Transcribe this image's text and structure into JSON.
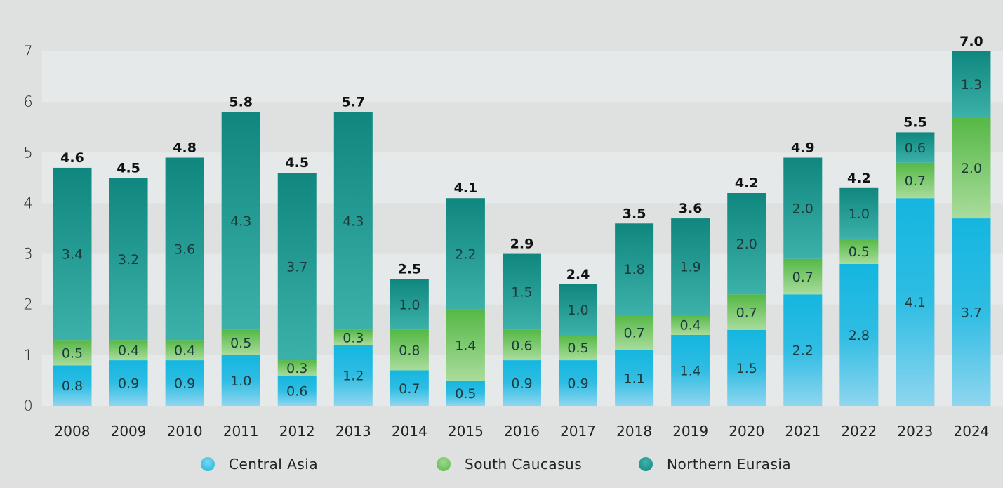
{
  "chart_data": {
    "type": "bar",
    "stacked": true,
    "title": "",
    "xlabel": "",
    "ylabel": "",
    "ylim": [
      0,
      7
    ],
    "yticks": [
      0,
      1,
      2,
      3,
      4,
      5,
      6,
      7
    ],
    "grid": "alternating horizontal bands",
    "legend_position": "bottom",
    "categories": [
      "2008",
      "2009",
      "2010",
      "2011",
      "2012",
      "2013",
      "2014",
      "2015",
      "2016",
      "2017",
      "2018",
      "2019",
      "2020",
      "2021",
      "2022",
      "2023",
      "2024"
    ],
    "series": [
      {
        "name": "Central Asia",
        "color": "#1bb8e2",
        "values": [
          0.8,
          0.9,
          0.9,
          1.0,
          0.6,
          1.2,
          0.7,
          0.5,
          0.9,
          0.9,
          1.1,
          1.4,
          1.5,
          2.2,
          2.8,
          4.1,
          3.7
        ]
      },
      {
        "name": "South Caucasus",
        "color": "#5bb94a",
        "values": [
          0.5,
          0.4,
          0.4,
          0.5,
          0.3,
          0.3,
          0.8,
          1.4,
          0.6,
          0.5,
          0.7,
          0.4,
          0.7,
          0.7,
          0.5,
          0.7,
          2.0
        ]
      },
      {
        "name": "Northern Eurasia",
        "color": "#108a80",
        "values": [
          3.4,
          3.2,
          3.6,
          4.3,
          3.7,
          4.3,
          1.0,
          2.2,
          1.5,
          1.0,
          1.8,
          1.9,
          2.0,
          2.0,
          1.0,
          0.6,
          1.3
        ]
      }
    ],
    "totals": [
      "4.6",
      "4.5",
      "4.8",
      "5.8",
      "4.5",
      "5.7",
      "2.5",
      "4.1",
      "2.9",
      "2.4",
      "3.5",
      "3.6",
      "4.2",
      "4.9",
      "4.2",
      "5.5",
      "7.0"
    ]
  },
  "legend": [
    {
      "label": "Central Asia",
      "icon": "circle-icon"
    },
    {
      "label": "South Caucasus",
      "icon": "circle-icon"
    },
    {
      "label": "Northern Eurasia",
      "icon": "circle-icon"
    }
  ]
}
